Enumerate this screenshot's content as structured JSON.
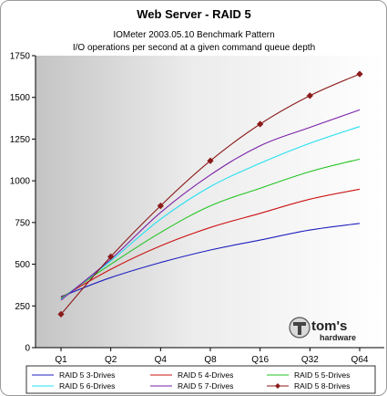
{
  "chart_data": {
    "type": "line",
    "title": "Web Server - RAID 5",
    "subtitle_lines": [
      "IOMeter 2003.05.10 Benchmark Pattern",
      "I/O operations per second at a given command queue depth"
    ],
    "categories": [
      "Q1",
      "Q2",
      "Q4",
      "Q8",
      "Q16",
      "Q32",
      "Q64"
    ],
    "ylim": [
      0,
      1750
    ],
    "yticks": [
      0,
      250,
      500,
      750,
      1000,
      1250,
      1500,
      1750
    ],
    "grid": false,
    "legend_position": "bottom",
    "series": [
      {
        "name": "RAID 5 3-Drives",
        "color": "#1f1fbf",
        "marker": "none",
        "values": [
          305,
          420,
          510,
          585,
          645,
          705,
          745
        ]
      },
      {
        "name": "RAID 5 4-Drives",
        "color": "#cc1111",
        "marker": "none",
        "values": [
          300,
          470,
          610,
          720,
          805,
          890,
          950
        ]
      },
      {
        "name": "RAID 5 5-Drives",
        "color": "#22c422",
        "marker": "none",
        "values": [
          295,
          500,
          690,
          850,
          955,
          1055,
          1130
        ]
      },
      {
        "name": "RAID 5 6-Drives",
        "color": "#22e0f0",
        "marker": "none",
        "values": [
          290,
          520,
          770,
          965,
          1105,
          1225,
          1325
        ]
      },
      {
        "name": "RAID 5 7-Drives",
        "color": "#7a1fa8",
        "marker": "none",
        "values": [
          285,
          530,
          810,
          1035,
          1210,
          1320,
          1425
        ]
      },
      {
        "name": "RAID 5 8-Drives",
        "color": "#8b1a1a",
        "marker": "diamond",
        "values": [
          200,
          545,
          850,
          1120,
          1340,
          1510,
          1640
        ]
      }
    ]
  },
  "logo": {
    "brand": "tom's",
    "sub": "hardware"
  }
}
